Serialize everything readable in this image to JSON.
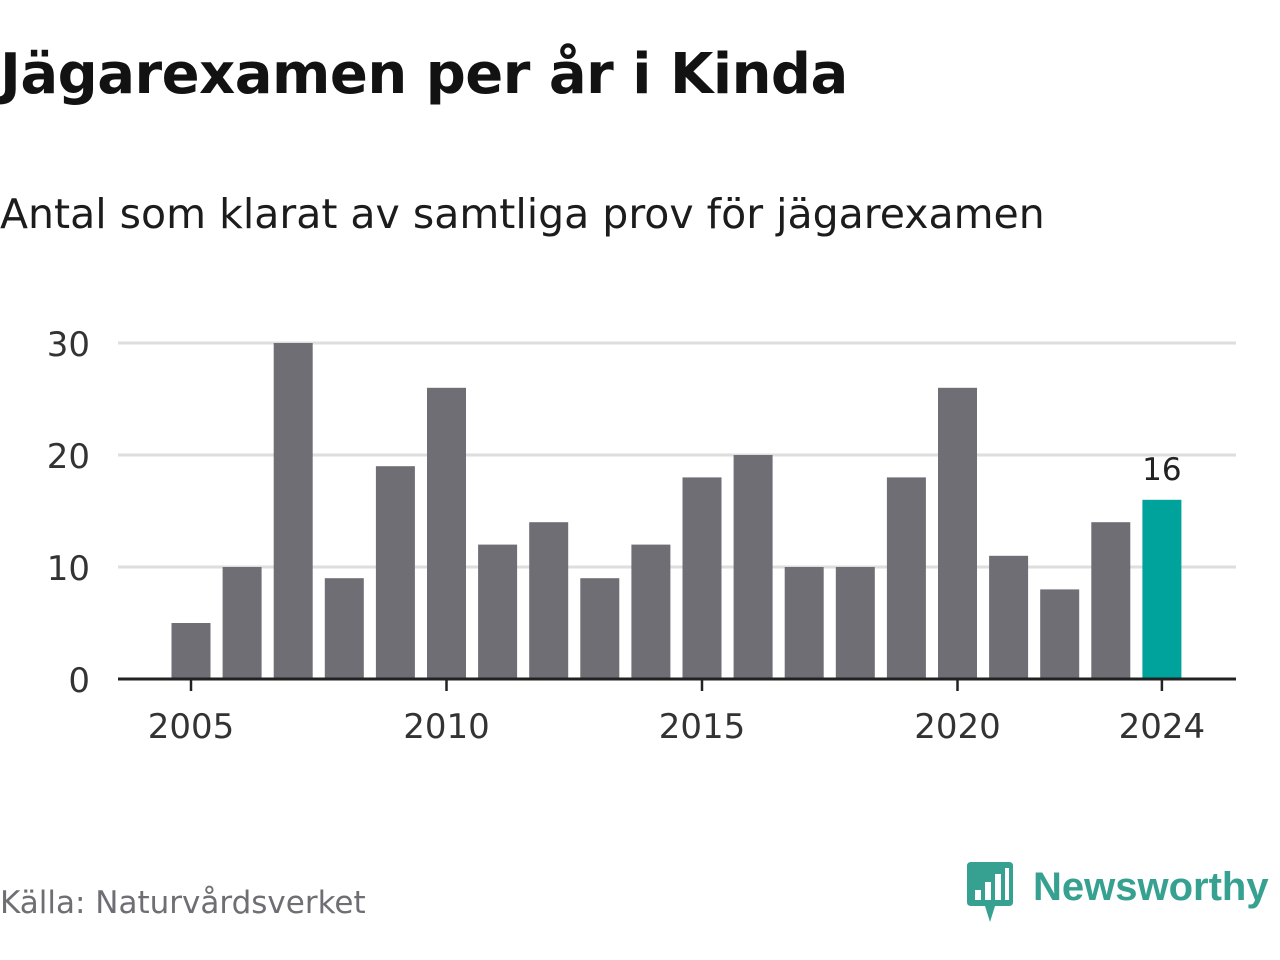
{
  "title": "Jägarexamen per år i Kinda",
  "subtitle": "Antal som klarat av samtliga prov för jägarexamen",
  "source": "Källa: Naturvårdsverket",
  "brand": {
    "name": "Newsworthy",
    "icon": "newsworthy-logo-icon",
    "color": "#36a190"
  },
  "colors": {
    "bar": "#6f6e74",
    "highlight": "#00a39b",
    "grid": "#dedede",
    "axis": "#222222"
  },
  "chart_data": {
    "type": "bar",
    "categories": [
      2005,
      2006,
      2007,
      2008,
      2009,
      2010,
      2011,
      2012,
      2013,
      2014,
      2015,
      2016,
      2017,
      2018,
      2019,
      2020,
      2021,
      2022,
      2023,
      2024
    ],
    "values": [
      5,
      10,
      30,
      9,
      19,
      26,
      12,
      14,
      9,
      12,
      18,
      20,
      10,
      10,
      18,
      26,
      11,
      8,
      14,
      16
    ],
    "highlight_index": 19,
    "highlight_label": "16",
    "x_ticks": [
      2005,
      2010,
      2015,
      2020,
      2024
    ],
    "y_ticks": [
      0,
      10,
      20,
      30
    ],
    "ylim": [
      0,
      30
    ],
    "grid": true,
    "legend": "none"
  }
}
